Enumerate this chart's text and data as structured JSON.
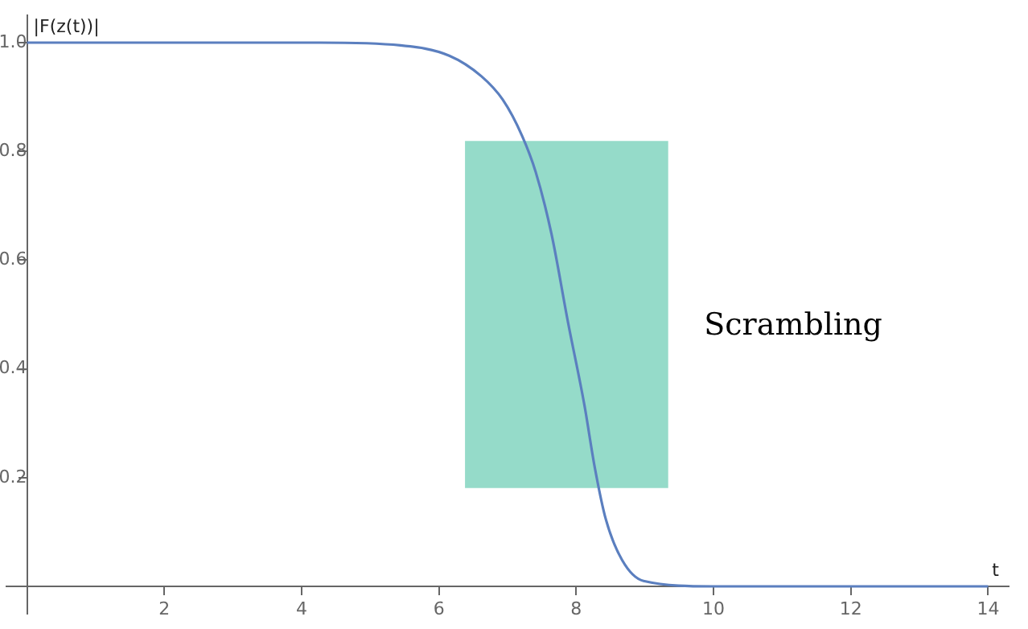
{
  "chart_data": {
    "type": "line",
    "xlabel": "t",
    "ylabel": "|F(z(t))|",
    "x": [
      0,
      2,
      4,
      4.26,
      5.44,
      6.15,
      6.62,
      6.93,
      7.21,
      7.41,
      7.64,
      7.88,
      8.12,
      8.27,
      8.43,
      8.67,
      8.98,
      10,
      12,
      14
    ],
    "series": [
      {
        "color": "#5b7fbf",
        "values": [
          1,
          1,
          1,
          1,
          0.995,
          0.976,
          0.938,
          0.895,
          0.829,
          0.762,
          0.648,
          0.486,
          0.333,
          0.219,
          0.124,
          0.048,
          0.01,
          0,
          0,
          0
        ]
      }
    ],
    "xlim": [
      -0.3,
      14.3
    ],
    "ylim": [
      -0.05,
      1.05
    ],
    "xticks": [
      2,
      4,
      6,
      8,
      10,
      12,
      14
    ],
    "yticks": [
      0.2,
      0.4,
      0.6,
      0.8,
      {
        "value": 1,
        "label": "1.0"
      }
    ],
    "bands": [
      {
        "axis": "x",
        "from": 6.38,
        "to": 9.34,
        "color": "#95dbc9"
      }
    ],
    "annotations": [
      "Scrambling"
    ],
    "grid": false,
    "legend": false,
    "marker": "none",
    "line_style": "solid"
  }
}
